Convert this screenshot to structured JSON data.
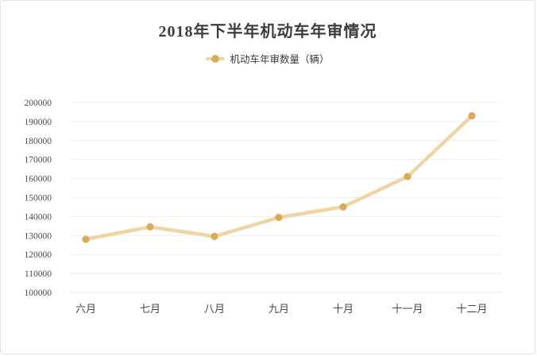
{
  "chart_data": {
    "type": "line",
    "title": "2018年下半年机动车年审情况",
    "legend": [
      {
        "label": "机动车年审数量（辆）"
      }
    ],
    "legend_position": "top",
    "categories": [
      "六月",
      "七月",
      "八月",
      "九月",
      "十月",
      "十一月",
      "十二月"
    ],
    "series": [
      {
        "name": "机动车年审数量（辆）",
        "values": [
          128000,
          134500,
          129500,
          139500,
          145000,
          161000,
          193000
        ]
      }
    ],
    "xlabel": "",
    "ylabel": "",
    "ylim": [
      100000,
      200000
    ],
    "y_tick_step": 10000,
    "y_ticks": [
      "100000",
      "110000",
      "120000",
      "130000",
      "140000",
      "150000",
      "160000",
      "170000",
      "180000",
      "190000",
      "200000"
    ],
    "grid": true,
    "colors": {
      "line": "#efd5a4",
      "marker": "#d9ac57",
      "grid": "#f0edea",
      "axis_text": "#4c4c4c",
      "title_text": "#3d3d3d",
      "border": "#e2e2e2",
      "background": "#ffffff"
    }
  }
}
